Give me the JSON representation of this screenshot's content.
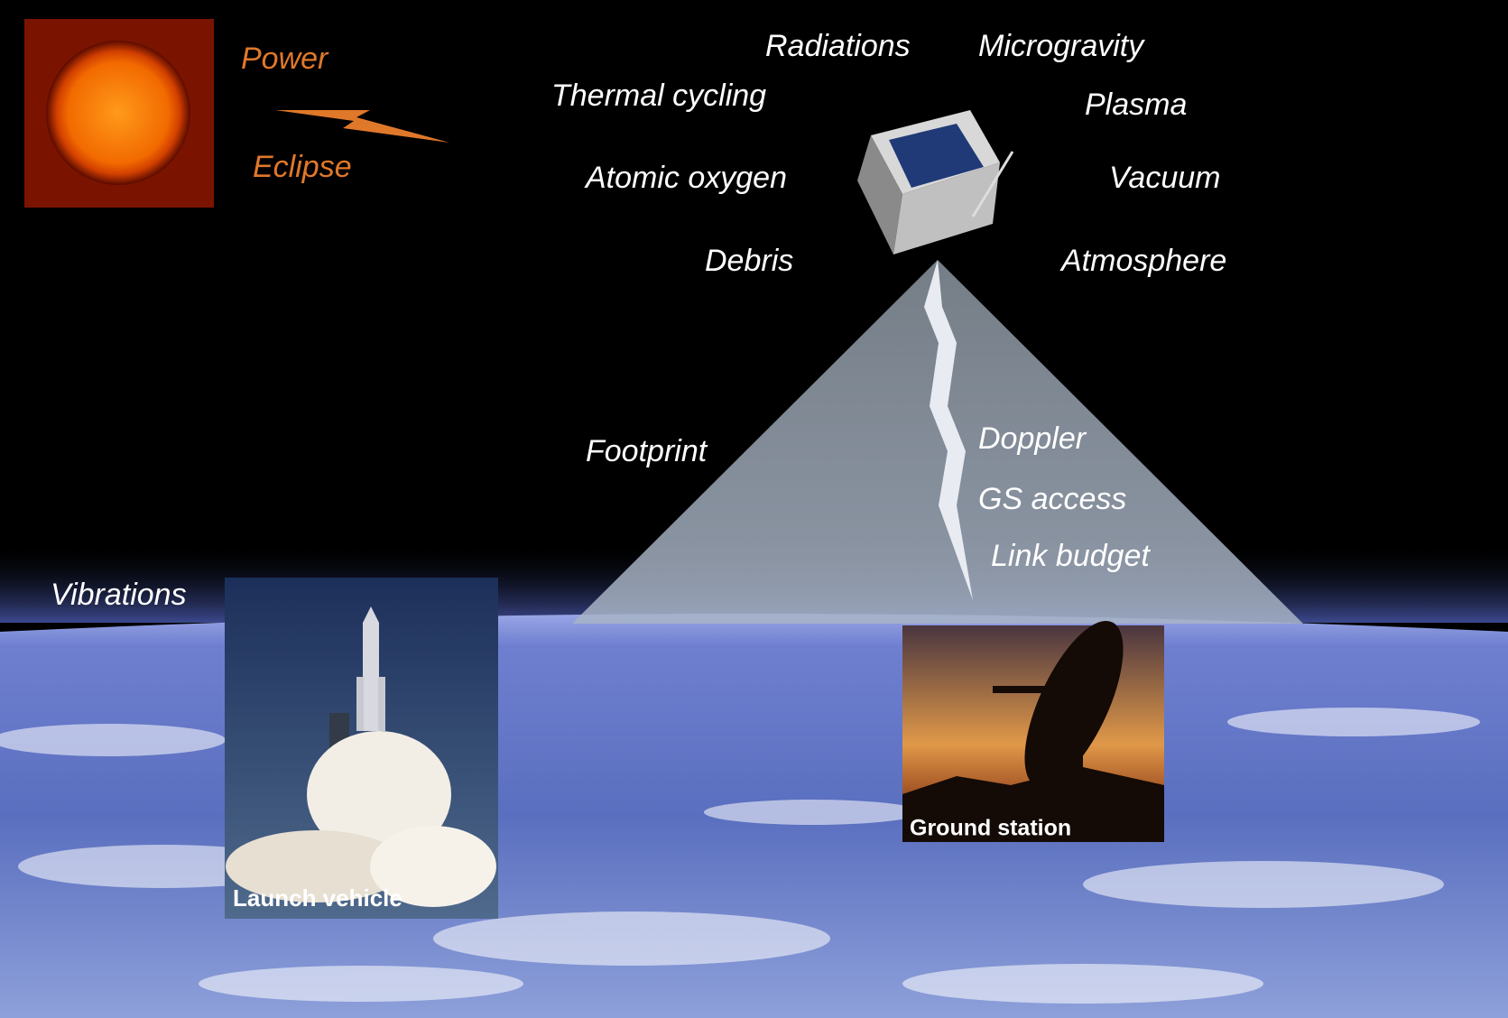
{
  "sun": {
    "labels": [
      "Power",
      "Eclipse"
    ]
  },
  "space_environment": [
    "Radiations",
    "Microgravity",
    "Thermal cycling",
    "Plasma",
    "Atomic oxygen",
    "Vacuum",
    "Debris",
    "Atmosphere"
  ],
  "link": {
    "footprint": "Footprint",
    "labels": [
      "Doppler",
      "GS access",
      "Link budget"
    ]
  },
  "launch": {
    "hazard": "Vibrations",
    "caption": "Launch vehicle"
  },
  "ground_station": {
    "caption": "Ground station"
  }
}
